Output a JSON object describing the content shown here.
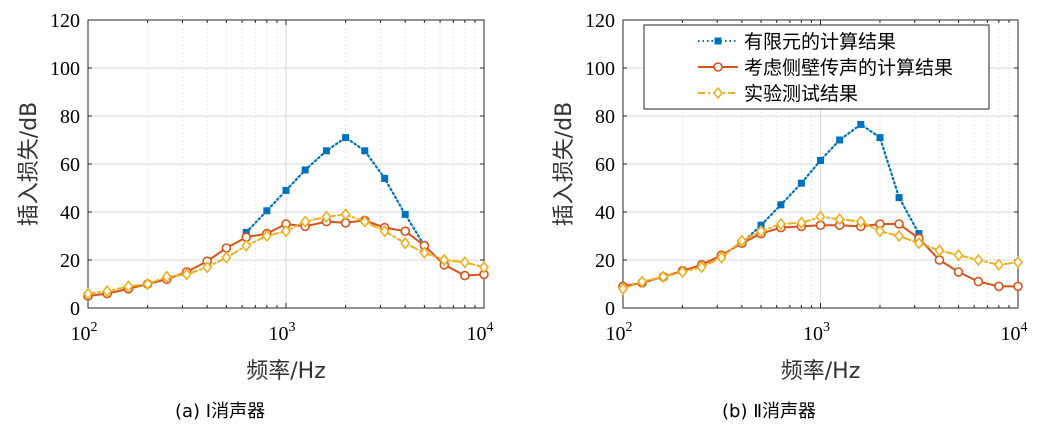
{
  "colors": {
    "fem": "#0072BD",
    "side": "#D95319",
    "exp": "#EDB120",
    "axis": "#262626",
    "grid": "#dcdcdc"
  },
  "chart_data": [
    {
      "type": "line",
      "caption": "(a) Ⅰ消声器",
      "xlabel": "频率/Hz",
      "ylabel": "插入损失/dB",
      "xscale": "log",
      "xlim": [
        100,
        10000
      ],
      "ylim": [
        0,
        120
      ],
      "yticks": [
        "0",
        "20",
        "40",
        "60",
        "80",
        "100",
        "120"
      ],
      "xticks": [
        {
          "base": "10",
          "exp": "2"
        },
        {
          "base": "10",
          "exp": "3"
        },
        {
          "base": "10",
          "exp": "4"
        }
      ],
      "grid": true,
      "legend": null,
      "series": [
        {
          "key": "fem",
          "marker": "square",
          "dash": "dot",
          "x": [
            630,
            800,
            1000,
            1250,
            1600,
            2000,
            2500,
            3150,
            4000,
            5000
          ],
          "y": [
            31.5,
            40.5,
            49,
            57.5,
            65.5,
            71,
            65.5,
            54,
            39,
            26
          ]
        },
        {
          "key": "side",
          "marker": "circle",
          "dash": "solid",
          "x": [
            100,
            125,
            160,
            200,
            250,
            315,
            400,
            500,
            630,
            800,
            1000,
            1250,
            1600,
            2000,
            2500,
            3150,
            4000,
            5000,
            6300,
            8000,
            10000
          ],
          "y": [
            5,
            6,
            8,
            10,
            12,
            15,
            19.5,
            25,
            29.5,
            31,
            35,
            34,
            36,
            35.5,
            36.5,
            33.5,
            32,
            26,
            18,
            13.5,
            14
          ]
        },
        {
          "key": "exp",
          "marker": "diamond",
          "dash": "dashdot",
          "x": [
            100,
            125,
            160,
            200,
            250,
            315,
            400,
            500,
            630,
            800,
            1000,
            1250,
            1600,
            2000,
            2500,
            3150,
            4000,
            5000,
            6300,
            8000,
            10000
          ],
          "y": [
            6,
            7,
            9,
            10,
            13,
            14,
            17,
            21,
            26,
            30,
            32,
            36,
            38,
            39,
            36,
            32,
            27,
            23,
            20,
            19,
            17
          ]
        }
      ]
    },
    {
      "type": "line",
      "caption": "(b) Ⅱ消声器",
      "xlabel": "频率/Hz",
      "ylabel": "插入损失/dB",
      "xscale": "log",
      "xlim": [
        100,
        10000
      ],
      "ylim": [
        0,
        120
      ],
      "yticks": [
        "0",
        "20",
        "40",
        "60",
        "80",
        "100",
        "120"
      ],
      "xticks": [
        {
          "base": "10",
          "exp": "2"
        },
        {
          "base": "10",
          "exp": "3"
        },
        {
          "base": "10",
          "exp": "4"
        }
      ],
      "grid": true,
      "legend": {
        "placement": "top-right",
        "labels": [
          "有限元的计算结果",
          "考虑侧壁传声的计算结果",
          "实验测试结果"
        ]
      },
      "series": [
        {
          "key": "fem",
          "marker": "square",
          "dash": "dot",
          "x": [
            400,
            500,
            630,
            800,
            1000,
            1250,
            1600,
            2000,
            2500,
            3150
          ],
          "y": [
            27,
            34.5,
            43,
            52,
            61.5,
            70,
            76.5,
            71,
            46,
            31
          ]
        },
        {
          "key": "side",
          "marker": "circle",
          "dash": "solid",
          "x": [
            100,
            125,
            160,
            200,
            250,
            315,
            400,
            500,
            630,
            800,
            1000,
            1250,
            1600,
            2000,
            2500,
            3150,
            4000,
            5000,
            6300,
            8000,
            10000
          ],
          "y": [
            9,
            10.5,
            13,
            15.5,
            18,
            22,
            27,
            31,
            33.5,
            34,
            34.5,
            34.5,
            34,
            35,
            35,
            29,
            20,
            15,
            11,
            9,
            9
          ]
        },
        {
          "key": "exp",
          "marker": "diamond",
          "dash": "dashdot",
          "x": [
            100,
            125,
            160,
            200,
            250,
            315,
            400,
            500,
            630,
            800,
            1000,
            1250,
            1600,
            2000,
            2500,
            3150,
            4000,
            5000,
            6300,
            8000,
            10000
          ],
          "y": [
            8,
            11,
            13,
            15,
            17,
            21,
            28,
            32,
            35,
            35.5,
            38,
            37,
            36,
            32,
            30,
            27,
            24,
            22,
            20,
            18,
            19
          ]
        }
      ]
    }
  ]
}
